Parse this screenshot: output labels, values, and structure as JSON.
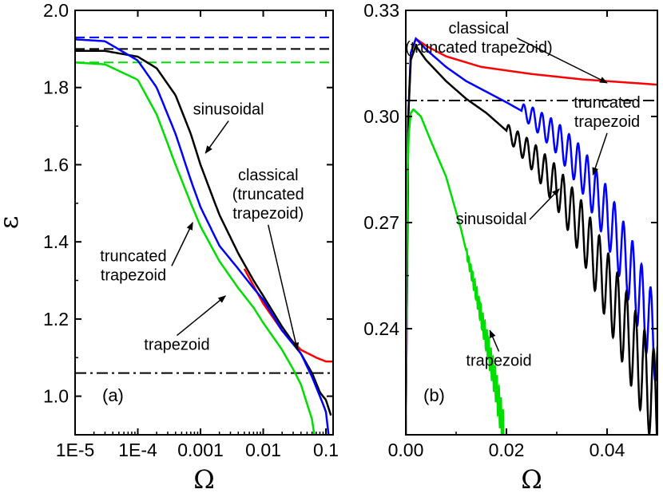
{
  "chart_data": [
    {
      "type": "line",
      "panel_label": "(a)",
      "xlabel": "Ω",
      "ylabel": "ε",
      "x_scale": "log",
      "xlim": [
        1e-05,
        0.13
      ],
      "ylim": [
        0.9,
        2.0
      ],
      "x_ticks": [
        {
          "value": 1e-05,
          "label": "1E-5"
        },
        {
          "value": 0.0001,
          "label": "1E-4"
        },
        {
          "value": 0.001,
          "label": "0.001"
        },
        {
          "value": 0.01,
          "label": "0.01"
        },
        {
          "value": 0.1,
          "label": "0.1"
        }
      ],
      "y_ticks": [
        {
          "value": 1.0,
          "label": "1.0"
        },
        {
          "value": 1.2,
          "label": "1.2"
        },
        {
          "value": 1.4,
          "label": "1.4"
        },
        {
          "value": 1.6,
          "label": "1.6"
        },
        {
          "value": 1.8,
          "label": "1.8"
        },
        {
          "value": 2.0,
          "label": "2.0"
        }
      ],
      "series": [
        {
          "name": "classical (truncated trapezoid)",
          "color": "#ff0000",
          "x": [
            0.005,
            0.01,
            0.02,
            0.04,
            0.07,
            0.1,
            0.13
          ],
          "y": [
            1.33,
            1.24,
            1.17,
            1.12,
            1.1,
            1.09,
            1.09
          ]
        },
        {
          "name": "sinusoidal",
          "color": "#000000",
          "x": [
            1e-05,
            3e-05,
            0.0001,
            0.0002,
            0.0004,
            0.0007,
            0.001,
            0.002,
            0.004,
            0.007,
            0.01,
            0.02,
            0.04,
            0.06,
            0.08,
            0.1,
            0.12
          ],
          "y": [
            1.895,
            1.895,
            1.88,
            1.85,
            1.78,
            1.68,
            1.6,
            1.47,
            1.37,
            1.3,
            1.26,
            1.18,
            1.11,
            1.06,
            1.01,
            0.99,
            0.95
          ]
        },
        {
          "name": "truncated trapezoid",
          "color": "#0000ff",
          "x": [
            1e-05,
            3e-05,
            0.0001,
            0.0002,
            0.0004,
            0.0007,
            0.001,
            0.002,
            0.004,
            0.007,
            0.01,
            0.02,
            0.04,
            0.06,
            0.08,
            0.1,
            0.11
          ],
          "y": [
            1.925,
            1.92,
            1.87,
            1.8,
            1.68,
            1.56,
            1.49,
            1.39,
            1.33,
            1.28,
            1.25,
            1.17,
            1.11,
            1.05,
            1.0,
            0.96,
            0.9
          ]
        },
        {
          "name": "trapezoid",
          "color": "#00dd00",
          "x": [
            1e-05,
            3e-05,
            0.0001,
            0.0002,
            0.0004,
            0.0007,
            0.001,
            0.002,
            0.004,
            0.007,
            0.01,
            0.02,
            0.03,
            0.04,
            0.05,
            0.06,
            0.065
          ],
          "y": [
            1.865,
            1.86,
            1.82,
            1.73,
            1.6,
            1.5,
            1.44,
            1.35,
            1.28,
            1.23,
            1.19,
            1.12,
            1.07,
            1.03,
            0.98,
            0.94,
            0.9
          ]
        }
      ],
      "reference_lines": [
        {
          "style": "dashed",
          "color": "#0000ff",
          "y": 1.93
        },
        {
          "style": "dashed",
          "color": "#000000",
          "y": 1.9
        },
        {
          "style": "dashed",
          "color": "#00dd00",
          "y": 1.865
        },
        {
          "style": "dashdot",
          "color": "#000000",
          "y": 1.06
        }
      ],
      "annotations": [
        {
          "lines": [
            "sinusoidal"
          ],
          "text_x": 0.0028,
          "text_y": 1.73,
          "arrow_to_x": 0.0012,
          "arrow_to_y": 1.63
        },
        {
          "lines": [
            "classical",
            "(truncated",
            "trapezoid)"
          ],
          "text_x": 0.012,
          "text_y": 1.56,
          "arrow_to_x": 0.035,
          "arrow_to_y": 1.12
        },
        {
          "lines": [
            "truncated",
            "trapezoid"
          ],
          "text_x": 8.5e-05,
          "text_y": 1.35,
          "arrow_to_x": 0.00075,
          "arrow_to_y": 1.45
        },
        {
          "lines": [
            "trapezoid"
          ],
          "text_x": 0.00042,
          "text_y": 1.12,
          "arrow_to_x": 0.0025,
          "arrow_to_y": 1.26
        }
      ]
    },
    {
      "type": "line",
      "panel_label": "(b)",
      "xlabel": "Ω",
      "ylabel": "",
      "x_scale": "linear",
      "xlim": [
        0.0,
        0.05
      ],
      "ylim": [
        0.21,
        0.33
      ],
      "x_ticks": [
        {
          "value": 0.0,
          "label": "0.00"
        },
        {
          "value": 0.02,
          "label": "0.02"
        },
        {
          "value": 0.04,
          "label": "0.04"
        }
      ],
      "y_ticks": [
        {
          "value": 0.24,
          "label": "0.24"
        },
        {
          "value": 0.27,
          "label": "0.27"
        },
        {
          "value": 0.3,
          "label": "0.30"
        },
        {
          "value": 0.33,
          "label": "0.33"
        }
      ],
      "series": [
        {
          "name": "classical (truncated trapezoid)",
          "color": "#ff0000",
          "x": [
            0.0,
            0.0005,
            0.001,
            0.002,
            0.004,
            0.008,
            0.015,
            0.025,
            0.035,
            0.045,
            0.05
          ],
          "y": [
            0.21,
            0.3,
            0.318,
            0.322,
            0.32,
            0.317,
            0.314,
            0.312,
            0.3105,
            0.3095,
            0.309
          ]
        },
        {
          "name": "truncated trapezoid",
          "color": "#0000ff",
          "x": [
            0.0,
            0.0005,
            0.001,
            0.002,
            0.004,
            0.008,
            0.012,
            0.016,
            0.02,
            0.025,
            0.03,
            0.035,
            0.04,
            0.045,
            0.05
          ],
          "y": [
            0.21,
            0.3,
            0.318,
            0.322,
            0.319,
            0.314,
            0.31,
            0.307,
            0.304,
            0.3,
            0.294,
            0.285,
            0.272,
            0.255,
            0.235
          ],
          "oscillation": {
            "start": 0.023,
            "period": 0.0018,
            "base_amp": 0.002,
            "amp_growth": 0.9
          }
        },
        {
          "name": "sinusoidal",
          "color": "#000000",
          "x": [
            0.0,
            0.0005,
            0.001,
            0.002,
            0.004,
            0.008,
            0.012,
            0.016,
            0.02,
            0.025,
            0.03,
            0.035,
            0.04,
            0.045,
            0.05
          ],
          "y": [
            0.21,
            0.3,
            0.316,
            0.32,
            0.316,
            0.31,
            0.305,
            0.301,
            0.296,
            0.289,
            0.28,
            0.268,
            0.252,
            0.235,
            0.218
          ],
          "oscillation": {
            "start": 0.02,
            "period": 0.0018,
            "base_amp": 0.002,
            "amp_growth": 1.0
          }
        },
        {
          "name": "trapezoid",
          "color": "#00dd00",
          "x": [
            0.0,
            0.0003,
            0.0006,
            0.001,
            0.0015,
            0.003,
            0.005,
            0.008,
            0.011,
            0.014,
            0.016,
            0.018,
            0.0195
          ],
          "y": [
            0.21,
            0.28,
            0.295,
            0.301,
            0.302,
            0.3,
            0.293,
            0.283,
            0.268,
            0.25,
            0.237,
            0.223,
            0.21
          ],
          "oscillation": {
            "start": 0.012,
            "period": 0.0004,
            "base_amp": 0.001,
            "amp_growth": 3.0
          }
        }
      ],
      "reference_lines": [
        {
          "style": "dashdot",
          "color": "#000000",
          "y": 0.3045
        }
      ],
      "annotations": [
        {
          "lines": [
            "classical",
            "(truncated trapezoid)"
          ],
          "text_x": 0.0145,
          "text_y": 0.3235,
          "arrow_to_x": 0.04,
          "arrow_to_y": 0.3095
        },
        {
          "lines": [
            "truncated",
            "trapezoid"
          ],
          "text_x": 0.04,
          "text_y": 0.3025,
          "arrow_to_x": 0.0372,
          "arrow_to_y": 0.2835
        },
        {
          "lines": [
            "sinusoidal"
          ],
          "text_x": 0.017,
          "text_y": 0.2695,
          "arrow_to_x": 0.0305,
          "arrow_to_y": 0.2795
        },
        {
          "lines": [
            "trapezoid"
          ],
          "text_x": 0.0185,
          "text_y": 0.2295,
          "arrow_to_x": 0.0167,
          "arrow_to_y": 0.2395
        }
      ]
    }
  ]
}
